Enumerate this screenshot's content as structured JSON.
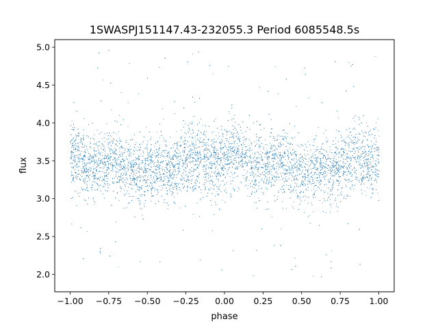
{
  "chart_data": {
    "type": "scatter",
    "title": "1SWASPJ151147.43-232055.3 Period 6085548.5s",
    "xlabel": "phase",
    "ylabel": "flux",
    "xlim": [
      -1.1,
      1.1
    ],
    "ylim": [
      1.77,
      5.1
    ],
    "xticks": [
      -1.0,
      -0.75,
      -0.5,
      -0.25,
      0.0,
      0.25,
      0.5,
      0.75,
      1.0
    ],
    "xtick_labels": [
      "−1.00",
      "−0.75",
      "−0.50",
      "−0.25",
      "0.00",
      "0.25",
      "0.50",
      "0.75",
      "1.00"
    ],
    "yticks": [
      2.0,
      2.5,
      3.0,
      3.5,
      4.0,
      4.5,
      5.0
    ],
    "ytick_labels": [
      "2.0",
      "2.5",
      "3.0",
      "3.5",
      "4.0",
      "4.5",
      "5.0"
    ],
    "grid": false,
    "legend": "none",
    "marker_color": "#1f77b4",
    "series": [
      {
        "x": [
          -1.0,
          -0.95,
          -0.9,
          -0.85,
          -0.8,
          -0.75,
          -0.7,
          -0.65,
          -0.6,
          -0.55,
          -0.5,
          -0.45,
          -0.4,
          -0.35,
          -0.3,
          -0.25,
          -0.2,
          -0.15,
          -0.1,
          -0.05,
          0.0,
          0.05,
          0.1,
          0.15,
          0.2,
          0.25,
          0.3,
          0.35,
          0.4,
          0.45,
          0.5,
          0.55,
          0.6,
          0.65,
          0.7,
          0.75,
          0.8,
          0.85,
          0.9,
          0.95,
          1.0
        ],
        "y": [
          3.6,
          3.55,
          3.45,
          3.4,
          3.45,
          3.5,
          3.5,
          3.45,
          3.4,
          3.35,
          3.35,
          3.38,
          3.4,
          3.35,
          3.45,
          3.5,
          3.55,
          3.5,
          3.45,
          3.45,
          3.55,
          3.6,
          3.55,
          3.45,
          3.4,
          3.45,
          3.5,
          3.5,
          3.45,
          3.4,
          3.35,
          3.35,
          3.38,
          3.4,
          3.35,
          3.45,
          3.5,
          3.55,
          3.5,
          3.45,
          3.55
        ]
      }
    ]
  }
}
